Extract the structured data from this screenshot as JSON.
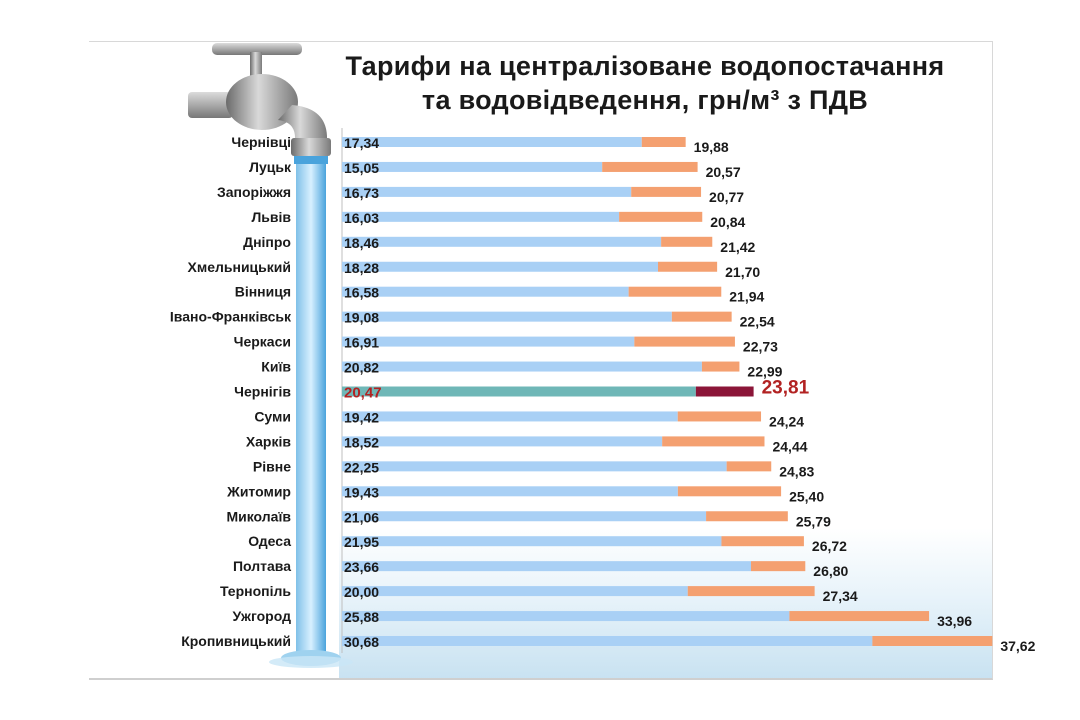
{
  "title": {
    "line1": "Тарифи на централізоване  водопостачання",
    "line2": "та водовідведення, грн/м³ з ПДВ"
  },
  "colors": {
    "water_supply": "#a9d0f5",
    "wastewater": "#f4a070",
    "highlight_supply": "#6fb7b7",
    "highlight_wastewater": "#8b1538",
    "highlight_text": "#b22222",
    "text": "#1a1a1a"
  },
  "icons": [
    "water-tap-icon",
    "water-stream-icon",
    "water-splash-icon"
  ],
  "chart_data": {
    "type": "bar",
    "orientation": "horizontal",
    "stacked": true,
    "categories": [
      "Чернівці",
      "Луцьк",
      "Запоріжжя",
      "Львів",
      "Дніпро",
      "Хмельницький",
      "Вінниця",
      "Івано-Франківськ",
      "Черкаси",
      "Київ",
      "Чернігів",
      "Суми",
      "Харків",
      "Рівне",
      "Житомир",
      "Миколаїв",
      "Одеса",
      "Полтава",
      "Тернопіль",
      "Ужгород",
      "Кропивницький"
    ],
    "first_segment_labels": [
      "17,34",
      "15,05",
      "16,73",
      "16,03",
      "18,46",
      "18,28",
      "16,58",
      "19,08",
      "16,91",
      "20,82",
      "20,47",
      "19,42",
      "18,52",
      "22,25",
      "19,43",
      "21,06",
      "21,95",
      "23,66",
      "20,00",
      "25,88",
      "30,68"
    ],
    "total_labels": [
      "19,88",
      "20,57",
      "20,77",
      "20,84",
      "21,42",
      "21,70",
      "21,94",
      "22,54",
      "22,73",
      "22,99",
      "23,81",
      "24,24",
      "24,44",
      "24,83",
      "25,40",
      "25,79",
      "26,72",
      "26,80",
      "27,34",
      "33,96",
      "37,62"
    ],
    "series": [
      {
        "values": [
          17.34,
          15.05,
          16.73,
          16.03,
          18.46,
          18.28,
          16.58,
          19.08,
          16.91,
          20.82,
          20.47,
          19.42,
          18.52,
          22.25,
          19.43,
          21.06,
          21.95,
          23.66,
          20.0,
          25.88,
          30.68
        ]
      },
      {
        "values": [
          2.54,
          5.52,
          4.04,
          4.81,
          2.96,
          3.42,
          5.36,
          3.46,
          5.82,
          2.17,
          3.34,
          4.82,
          5.92,
          2.58,
          5.97,
          4.73,
          4.77,
          3.14,
          7.34,
          8.08,
          6.94
        ]
      }
    ],
    "totals": [
      19.88,
      20.57,
      20.77,
      20.84,
      21.42,
      21.7,
      21.94,
      22.54,
      22.73,
      22.99,
      23.81,
      24.24,
      24.44,
      24.83,
      25.4,
      25.79,
      26.72,
      26.8,
      27.34,
      33.96,
      37.62
    ],
    "highlight_category": "Чернігів",
    "xlim": [
      0,
      40
    ]
  }
}
